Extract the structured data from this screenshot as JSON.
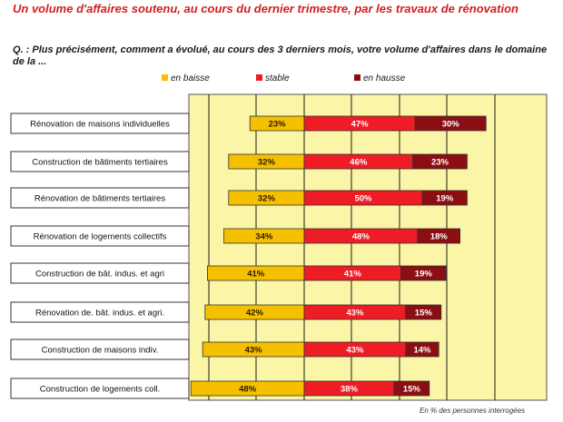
{
  "title": "Un volume d'affaires soutenu, au cours du dernier trimestre, par les travaux de rénovation",
  "question": "Q. : Plus précisément, comment a évolué, au cours des 3 derniers mois, votre volume d'affaires dans le domaine de la ...",
  "footnote": "En % des personnes interrogées",
  "colors": {
    "baisse": "#f5c000",
    "stable": "#ee1c24",
    "hausse": "#8b0f12",
    "plot_bg": "#fbf5a8",
    "label_border": "#333333"
  },
  "chart_data": {
    "type": "bar",
    "orientation": "horizontal",
    "stacked": true,
    "grid": true,
    "legend_position": "top",
    "xlabel": "",
    "ylabel": "",
    "categories": [
      "Rénovation de maisons individuelles",
      "Construction de bâtiments tertiaires",
      "Rénovation de bâtiments tertiaires",
      "Rénovation de logements collectifs",
      "Construction de bât. indus. et agri",
      "Rénovation de. bât. indus. et agri.",
      "Construction de maisons indiv.",
      "Construction de logements coll."
    ],
    "series": [
      {
        "name": "en baisse",
        "values": [
          23,
          32,
          32,
          34,
          41,
          42,
          43,
          48
        ],
        "labels": [
          "23%",
          "32%",
          "32%",
          "34%",
          "41%",
          "42%",
          "43%",
          "48%"
        ]
      },
      {
        "name": "stable",
        "values": [
          47,
          46,
          50,
          48,
          41,
          43,
          43,
          38
        ],
        "labels": [
          "47%",
          "46%",
          "50%",
          "48%",
          "41%",
          "43%",
          "43%",
          "38%"
        ]
      },
      {
        "name": "en hausse",
        "values": [
          30,
          23,
          19,
          18,
          19,
          15,
          14,
          15
        ],
        "labels": [
          "30%",
          "23%",
          "19%",
          "18%",
          "19%",
          "15%",
          "14%",
          "15%"
        ]
      }
    ]
  }
}
